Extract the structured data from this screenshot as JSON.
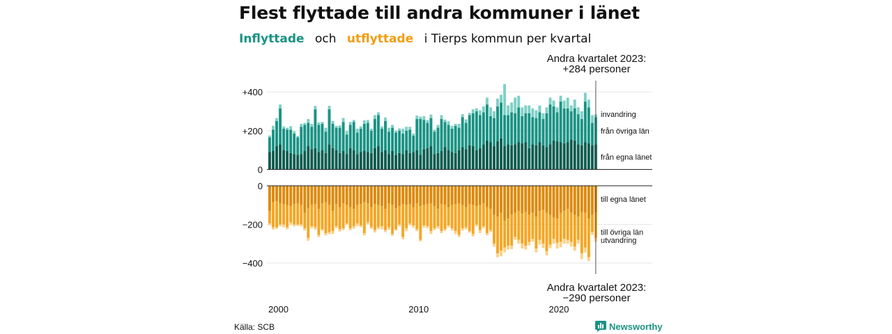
{
  "title": "Flest flyttade till andra kommuner i länet",
  "subtitle": {
    "in_word": "Inflyttade",
    "och": "och",
    "out_word": "utflyttade",
    "rest": "i Tierps kommun per kvartal"
  },
  "annotations": {
    "top_line1": "Andra kvartalet 2023:",
    "top_line2": "+284 personer",
    "bottom_line1": "Andra kvartalet 2023:",
    "bottom_line2": "−290 personer"
  },
  "source": "Källa: SCB",
  "brand": "Newsworthy",
  "colors": {
    "in_own": "#0d5c50",
    "in_other": "#1a9384",
    "in_emig": "#7fd0c6",
    "out_own": "#dd8a0a",
    "out_other": "#f5a623",
    "out_emig": "#fbd28a"
  },
  "chart_data": {
    "type": "bar",
    "x_start": "2000 Q1",
    "x_end": "2023 Q2",
    "x_ticks": [
      "2000",
      "2010",
      "2020"
    ],
    "inflow": {
      "ylim": [
        0,
        450
      ],
      "y_ticks": [
        "+400",
        "+200",
        "0"
      ],
      "series_labels": [
        "invandring",
        "från övriga län",
        "från egna länet"
      ],
      "own_county": [
        90,
        95,
        120,
        130,
        100,
        95,
        85,
        80,
        75,
        80,
        95,
        120,
        105,
        110,
        90,
        100,
        85,
        130,
        110,
        100,
        85,
        95,
        80,
        110,
        100,
        80,
        90,
        95,
        90,
        85,
        110,
        120,
        90,
        100,
        80,
        95,
        75,
        85,
        80,
        100,
        85,
        90,
        100,
        75,
        105,
        110,
        120,
        80,
        85,
        95,
        115,
        100,
        90,
        85,
        100,
        115,
        105,
        125,
        120,
        100,
        110,
        130,
        150,
        140,
        120,
        145,
        160,
        120,
        130,
        125,
        130,
        140,
        135,
        140,
        110,
        130,
        125,
        140,
        125,
        115,
        130,
        150,
        145,
        140,
        135,
        140,
        155,
        150,
        130,
        125,
        140,
        135,
        125,
        130
      ],
      "other_county": [
        75,
        110,
        130,
        185,
        110,
        110,
        120,
        105,
        90,
        140,
        135,
        120,
        115,
        200,
        140,
        135,
        110,
        180,
        125,
        115,
        130,
        150,
        100,
        120,
        145,
        110,
        120,
        140,
        150,
        115,
        150,
        160,
        120,
        150,
        115,
        120,
        115,
        115,
        105,
        100,
        120,
        85,
        160,
        185,
        150,
        130,
        145,
        115,
        130,
        165,
        130,
        130,
        120,
        140,
        115,
        155,
        135,
        155,
        170,
        200,
        170,
        165,
        185,
        135,
        145,
        180,
        185,
        160,
        150,
        170,
        160,
        180,
        140,
        150,
        180,
        140,
        140,
        155,
        135,
        175,
        205,
        175,
        150,
        210,
        180,
        175,
        145,
        165,
        155,
        135,
        210,
        185,
        115,
        140
      ],
      "emigration": [
        10,
        20,
        15,
        20,
        12,
        10,
        18,
        12,
        8,
        15,
        10,
        20,
        15,
        18,
        12,
        10,
        20,
        18,
        15,
        10,
        12,
        20,
        18,
        15,
        10,
        20,
        12,
        18,
        15,
        10,
        20,
        15,
        12,
        18,
        20,
        15,
        10,
        12,
        25,
        20,
        15,
        10,
        18,
        12,
        20,
        15,
        18,
        10,
        15,
        20,
        12,
        18,
        15,
        10,
        20,
        15,
        18,
        12,
        20,
        15,
        25,
        30,
        35,
        45,
        35,
        40,
        40,
        160,
        50,
        50,
        80,
        60,
        45,
        40,
        40,
        45,
        40,
        35,
        30,
        30,
        35,
        30,
        25,
        30,
        40,
        55,
        30,
        45,
        35,
        40,
        45,
        40,
        40,
        14
      ]
    },
    "outflow": {
      "ylim": [
        -450,
        0
      ],
      "y_ticks": [
        "0",
        "−200",
        "−400"
      ],
      "series_labels": [
        "till egna länet",
        "till övriga län",
        "utvandring"
      ],
      "own_county": [
        -130,
        -85,
        -80,
        -90,
        -95,
        -100,
        -105,
        -95,
        -90,
        -100,
        -140,
        -115,
        -100,
        -95,
        -120,
        -90,
        -85,
        -100,
        -130,
        -95,
        -110,
        -90,
        -100,
        -110,
        -120,
        -100,
        -95,
        -85,
        -90,
        -110,
        -95,
        -100,
        -105,
        -120,
        -90,
        -100,
        -115,
        -105,
        -95,
        -100,
        -95,
        -110,
        -90,
        -105,
        -100,
        -95,
        -90,
        -105,
        -120,
        -95,
        -100,
        -110,
        -100,
        -95,
        -90,
        -100,
        -110,
        -95,
        -100,
        -105,
        -100,
        -90,
        -110,
        -120,
        -150,
        -160,
        -140,
        -180,
        -170,
        -150,
        -140,
        -130,
        -145,
        -135,
        -150,
        -140,
        -160,
        -130,
        -125,
        -140,
        -150,
        -165,
        -170,
        -140,
        -130,
        -120,
        -140,
        -150,
        -160,
        -135,
        -140,
        -170,
        -150,
        -137
      ],
      "other_county": [
        -65,
        -130,
        -135,
        -110,
        -105,
        -115,
        -85,
        -105,
        -110,
        -100,
        -80,
        -155,
        -110,
        -120,
        -135,
        -135,
        -160,
        -140,
        -105,
        -115,
        -115,
        -130,
        -95,
        -110,
        -90,
        -95,
        -110,
        -160,
        -100,
        -105,
        -135,
        -115,
        -105,
        -110,
        -125,
        -150,
        -110,
        -95,
        -170,
        -120,
        -100,
        -95,
        -135,
        -175,
        -105,
        -115,
        -145,
        -115,
        -90,
        -140,
        -125,
        -95,
        -120,
        -140,
        -165,
        -120,
        -105,
        -140,
        -150,
        -95,
        -130,
        -120,
        -135,
        -110,
        -150,
        -190,
        -195,
        -140,
        -140,
        -160,
        -125,
        -150,
        -155,
        -175,
        -140,
        -135,
        -165,
        -150,
        -175,
        -200,
        -155,
        -110,
        -125,
        -150,
        -145,
        -160,
        -150,
        -165,
        -120,
        -215,
        -180,
        -200,
        -90,
        -133
      ],
      "emigration": [
        -10,
        -12,
        -8,
        -10,
        -15,
        -10,
        -12,
        -10,
        -8,
        -10,
        -12,
        -15,
        -10,
        -12,
        -10,
        -8,
        -12,
        -10,
        -15,
        -10,
        -12,
        -10,
        -8,
        -10,
        -12,
        -15,
        -10,
        -12,
        -10,
        -8,
        -12,
        -10,
        -15,
        -10,
        -12,
        -10,
        -8,
        -10,
        -12,
        -15,
        -10,
        -12,
        -10,
        -8,
        -12,
        -10,
        -15,
        -10,
        -12,
        -10,
        -8,
        -10,
        -12,
        -15,
        -10,
        -12,
        -10,
        -8,
        -12,
        -10,
        -15,
        -10,
        -12,
        -10,
        -15,
        -20,
        -30,
        -25,
        -20,
        -18,
        -15,
        -20,
        -25,
        -20,
        -18,
        -15,
        -20,
        -25,
        -22,
        -20,
        -18,
        -25,
        -30,
        -28,
        -25,
        -20,
        -25,
        -22,
        -20,
        -30,
        -25,
        -20,
        -15,
        -20
      ]
    }
  }
}
